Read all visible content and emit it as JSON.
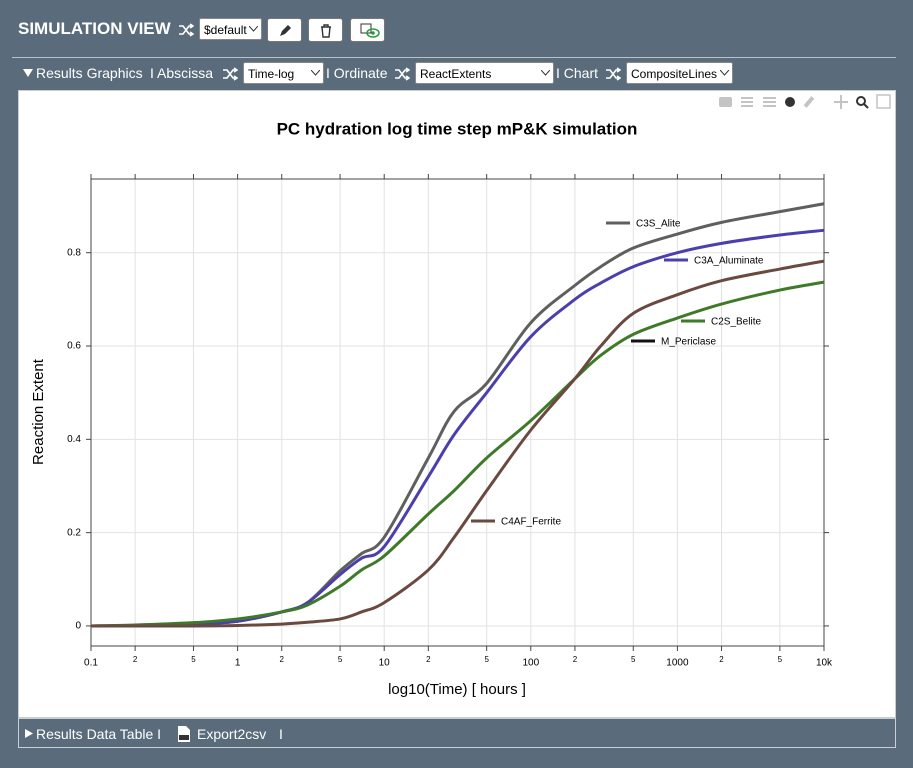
{
  "header": {
    "title": "SIMULATION VIEW",
    "preset": "$default"
  },
  "toolbar": {
    "section": "Results Graphics",
    "abscissa_label": "I Abscissa",
    "abscissa": "Time-log",
    "ordinate_label": "I Ordinate",
    "ordinate": "ReactExtents",
    "chart_label": "I Chart",
    "chart": "CompositeLines"
  },
  "footer": {
    "section": "Results Data Table I",
    "export": "Export2csv",
    "separator": "I"
  },
  "chart_data": {
    "type": "line",
    "title": "PC hydration log time step mP&K simulation",
    "x_label": "log10(Time) [ hours ]",
    "y_label": "Reaction Extent",
    "x_scale": "log",
    "grid": true,
    "xlim": [
      0.1,
      10000
    ],
    "ylim": [
      -0.043,
      0.958
    ],
    "xticks": [
      {
        "value": 0.1,
        "label": "0.1"
      },
      {
        "value": 0.2,
        "label": "2"
      },
      {
        "value": 0.5,
        "label": "5"
      },
      1,
      {
        "value": 2,
        "label": "2"
      },
      {
        "value": 5,
        "label": "5"
      },
      10,
      {
        "value": 20,
        "label": "2"
      },
      {
        "value": 50,
        "label": "5"
      },
      100,
      {
        "value": 200,
        "label": "2"
      },
      {
        "value": 500,
        "label": "5"
      },
      1000,
      {
        "value": 2000,
        "label": "2"
      },
      {
        "value": 5000,
        "label": "5"
      },
      {
        "value": 10000,
        "label": "10k"
      }
    ],
    "yticks": [
      0,
      0.2,
      0.4,
      0.6,
      0.8
    ],
    "x": [
      0.1,
      0.2,
      0.5,
      1,
      2,
      3,
      5,
      7,
      10,
      20,
      30,
      50,
      100,
      200,
      300,
      500,
      1000,
      2000,
      5000,
      10000
    ],
    "series": [
      {
        "name": "C3S_Alite",
        "color": "#5f5f5f",
        "values": [
          0,
          0.001,
          0.004,
          0.01,
          0.03,
          0.05,
          0.118,
          0.155,
          0.19,
          0.36,
          0.46,
          0.52,
          0.65,
          0.73,
          0.77,
          0.81,
          0.84,
          0.865,
          0.888,
          0.905
        ]
      },
      {
        "name": "C3A_Aluminate",
        "color": "#4b3fae",
        "values": [
          0,
          0.001,
          0.004,
          0.01,
          0.03,
          0.05,
          0.11,
          0.145,
          0.17,
          0.32,
          0.41,
          0.5,
          0.62,
          0.7,
          0.735,
          0.77,
          0.8,
          0.82,
          0.838,
          0.848
        ]
      },
      {
        "name": "C2S_Belite",
        "color": "#3e7a28",
        "values": [
          0,
          0.002,
          0.007,
          0.015,
          0.03,
          0.045,
          0.085,
          0.12,
          0.15,
          0.24,
          0.29,
          0.36,
          0.44,
          0.53,
          0.58,
          0.625,
          0.66,
          0.69,
          0.72,
          0.737
        ]
      },
      {
        "name": "M_Periclase",
        "color": "#111111",
        "values": [
          null,
          null,
          null,
          null,
          null,
          null,
          null,
          null,
          null,
          null,
          null,
          null,
          null,
          null,
          null,
          null,
          null,
          null,
          null,
          null
        ]
      },
      {
        "name": "C4AF_Ferrite",
        "color": "#6a4a40",
        "values": [
          0,
          0,
          0,
          0.001,
          0.004,
          0.008,
          0.015,
          0.03,
          0.05,
          0.12,
          0.19,
          0.29,
          0.42,
          0.53,
          0.6,
          0.67,
          0.71,
          0.74,
          0.765,
          0.782
        ]
      }
    ]
  }
}
